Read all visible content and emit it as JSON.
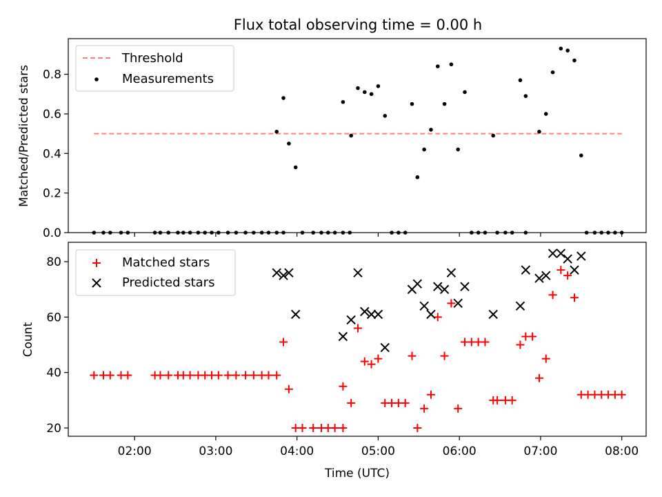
{
  "chart_data": [
    {
      "type": "scatter",
      "title": "Flux total observing time = 0.00 h",
      "xlabel": "",
      "ylabel": "Matched/Predicted stars",
      "xlim": [
        "01:11",
        "08:18"
      ],
      "ylim": [
        0,
        0.98
      ],
      "y_ticks": [
        0.0,
        0.2,
        0.4,
        0.6,
        0.8
      ],
      "y_tick_labels": [
        "0.0",
        "0.2",
        "0.4",
        "0.6",
        "0.8"
      ],
      "legend_position": "top-left",
      "grid": false,
      "threshold": {
        "name": "Threshold",
        "value": 0.5,
        "x_start": "01:30",
        "x_end": "08:00",
        "color": "#ff7f7f"
      },
      "series": [
        {
          "name": "Measurements",
          "color": "#000000",
          "marker": "dot",
          "points": [
            [
              "01:30",
              0
            ],
            [
              "01:37",
              0
            ],
            [
              "01:42",
              0
            ],
            [
              "01:50",
              0
            ],
            [
              "01:55",
              0
            ],
            [
              "02:15",
              0
            ],
            [
              "02:19",
              0
            ],
            [
              "02:25",
              0
            ],
            [
              "02:32",
              0
            ],
            [
              "02:36",
              0
            ],
            [
              "02:41",
              0
            ],
            [
              "02:47",
              0
            ],
            [
              "02:52",
              0
            ],
            [
              "02:57",
              0
            ],
            [
              "03:02",
              0
            ],
            [
              "03:09",
              0
            ],
            [
              "03:15",
              0
            ],
            [
              "03:22",
              0
            ],
            [
              "03:28",
              0
            ],
            [
              "03:34",
              0
            ],
            [
              "03:39",
              0
            ],
            [
              "03:45",
              0
            ],
            [
              "03:50",
              0
            ],
            [
              "03:45",
              0.51
            ],
            [
              "03:50",
              0.68
            ],
            [
              "03:54",
              0.45
            ],
            [
              "03:59",
              0.33
            ],
            [
              "04:04",
              0
            ],
            [
              "04:12",
              0
            ],
            [
              "04:18",
              0
            ],
            [
              "04:23",
              0
            ],
            [
              "04:28",
              0
            ],
            [
              "04:34",
              0
            ],
            [
              "04:39",
              0
            ],
            [
              "04:34",
              0.66
            ],
            [
              "04:40",
              0.49
            ],
            [
              "04:45",
              0.73
            ],
            [
              "04:50",
              0.71
            ],
            [
              "04:55",
              0.7
            ],
            [
              "05:00",
              0.74
            ],
            [
              "05:05",
              0.59
            ],
            [
              "05:10",
              0
            ],
            [
              "05:15",
              0
            ],
            [
              "05:20",
              0
            ],
            [
              "05:25",
              0.65
            ],
            [
              "05:29",
              0.28
            ],
            [
              "05:34",
              0.42
            ],
            [
              "05:39",
              0.52
            ],
            [
              "05:44",
              0.84
            ],
            [
              "05:49",
              0.65
            ],
            [
              "05:54",
              0.85
            ],
            [
              "05:59",
              0.42
            ],
            [
              "06:04",
              0.71
            ],
            [
              "06:09",
              0
            ],
            [
              "06:14",
              0
            ],
            [
              "06:19",
              0
            ],
            [
              "06:28",
              0
            ],
            [
              "06:34",
              0
            ],
            [
              "06:39",
              0
            ],
            [
              "06:49",
              0
            ],
            [
              "06:25",
              0.49
            ],
            [
              "06:45",
              0.77
            ],
            [
              "06:49",
              0.69
            ],
            [
              "06:59",
              0.51
            ],
            [
              "07:04",
              0.6
            ],
            [
              "07:09",
              0.81
            ],
            [
              "07:15",
              0.93
            ],
            [
              "07:20",
              0.92
            ],
            [
              "07:25",
              0.87
            ],
            [
              "07:30",
              0.39
            ],
            [
              "07:34",
              0
            ],
            [
              "07:40",
              0
            ],
            [
              "07:45",
              0
            ],
            [
              "07:50",
              0
            ],
            [
              "07:55",
              0
            ],
            [
              "08:00",
              0
            ]
          ]
        }
      ]
    },
    {
      "type": "scatter",
      "title": "",
      "xlabel": "Time (UTC)",
      "ylabel": "Count",
      "xlim": [
        "01:11",
        "08:18"
      ],
      "ylim": [
        17,
        87
      ],
      "y_ticks": [
        20,
        40,
        60,
        80
      ],
      "y_tick_labels": [
        "20",
        "40",
        "60",
        "80"
      ],
      "x_ticks": [
        "02:00",
        "03:00",
        "04:00",
        "05:00",
        "06:00",
        "07:00",
        "08:00"
      ],
      "x_tick_labels": [
        "02:00",
        "03:00",
        "04:00",
        "05:00",
        "06:00",
        "07:00",
        "08:00"
      ],
      "legend_position": "top-left",
      "grid": false,
      "series": [
        {
          "name": "Matched stars",
          "color": "#ff0000",
          "marker": "plus",
          "points": [
            [
              "01:30",
              39
            ],
            [
              "01:37",
              39
            ],
            [
              "01:42",
              39
            ],
            [
              "01:50",
              39
            ],
            [
              "01:55",
              39
            ],
            [
              "02:15",
              39
            ],
            [
              "02:19",
              39
            ],
            [
              "02:25",
              39
            ],
            [
              "02:32",
              39
            ],
            [
              "02:36",
              39
            ],
            [
              "02:41",
              39
            ],
            [
              "02:47",
              39
            ],
            [
              "02:52",
              39
            ],
            [
              "02:57",
              39
            ],
            [
              "03:02",
              39
            ],
            [
              "03:09",
              39
            ],
            [
              "03:15",
              39
            ],
            [
              "03:22",
              39
            ],
            [
              "03:28",
              39
            ],
            [
              "03:34",
              39
            ],
            [
              "03:39",
              39
            ],
            [
              "03:45",
              39
            ],
            [
              "03:50",
              51
            ],
            [
              "03:54",
              34
            ],
            [
              "03:59",
              20
            ],
            [
              "04:04",
              20
            ],
            [
              "04:12",
              20
            ],
            [
              "04:18",
              20
            ],
            [
              "04:23",
              20
            ],
            [
              "04:28",
              20
            ],
            [
              "04:34",
              20
            ],
            [
              "04:34",
              35
            ],
            [
              "04:40",
              29
            ],
            [
              "04:45",
              56
            ],
            [
              "04:50",
              44
            ],
            [
              "04:55",
              43
            ],
            [
              "05:00",
              45
            ],
            [
              "05:05",
              29
            ],
            [
              "05:10",
              29
            ],
            [
              "05:15",
              29
            ],
            [
              "05:20",
              29
            ],
            [
              "05:25",
              46
            ],
            [
              "05:29",
              20
            ],
            [
              "05:34",
              27
            ],
            [
              "05:39",
              32
            ],
            [
              "05:44",
              60
            ],
            [
              "05:49",
              46
            ],
            [
              "05:54",
              65
            ],
            [
              "05:59",
              27
            ],
            [
              "06:04",
              51
            ],
            [
              "06:09",
              51
            ],
            [
              "06:14",
              51
            ],
            [
              "06:19",
              51
            ],
            [
              "06:25",
              30
            ],
            [
              "06:28",
              30
            ],
            [
              "06:34",
              30
            ],
            [
              "06:39",
              30
            ],
            [
              "06:45",
              50
            ],
            [
              "06:49",
              53
            ],
            [
              "06:54",
              53
            ],
            [
              "06:59",
              38
            ],
            [
              "07:04",
              45
            ],
            [
              "07:09",
              68
            ],
            [
              "07:15",
              77
            ],
            [
              "07:20",
              75
            ],
            [
              "07:25",
              67
            ],
            [
              "07:30",
              32
            ],
            [
              "07:35",
              32
            ],
            [
              "07:40",
              32
            ],
            [
              "07:45",
              32
            ],
            [
              "07:50",
              32
            ],
            [
              "07:55",
              32
            ],
            [
              "08:00",
              32
            ]
          ]
        },
        {
          "name": "Predicted stars",
          "color": "#000000",
          "marker": "x",
          "points": [
            [
              "03:45",
              76
            ],
            [
              "03:50",
              75
            ],
            [
              "03:54",
              76
            ],
            [
              "03:59",
              61
            ],
            [
              "04:34",
              53
            ],
            [
              "04:40",
              59
            ],
            [
              "04:45",
              76
            ],
            [
              "04:50",
              62
            ],
            [
              "04:55",
              61
            ],
            [
              "05:00",
              61
            ],
            [
              "05:05",
              49
            ],
            [
              "05:25",
              70
            ],
            [
              "05:29",
              72
            ],
            [
              "05:34",
              64
            ],
            [
              "05:39",
              61
            ],
            [
              "05:44",
              71
            ],
            [
              "05:49",
              70
            ],
            [
              "05:54",
              76
            ],
            [
              "05:59",
              65
            ],
            [
              "06:04",
              71
            ],
            [
              "06:25",
              61
            ],
            [
              "06:45",
              64
            ],
            [
              "06:49",
              77
            ],
            [
              "06:59",
              74
            ],
            [
              "07:04",
              75
            ],
            [
              "07:09",
              83
            ],
            [
              "07:15",
              83
            ],
            [
              "07:20",
              81
            ],
            [
              "07:25",
              77
            ],
            [
              "07:30",
              82
            ]
          ]
        }
      ]
    }
  ]
}
